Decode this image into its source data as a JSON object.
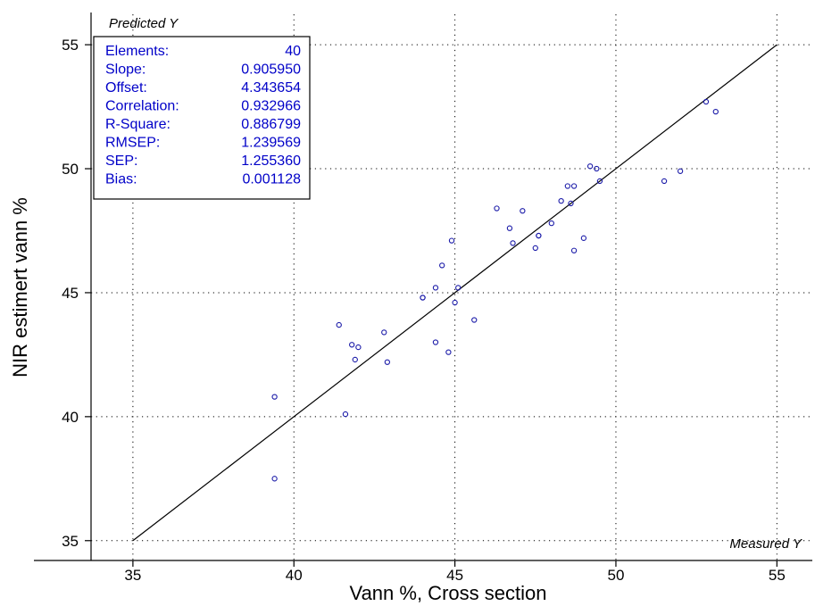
{
  "chart_data": {
    "type": "scatter",
    "xlabel": "Vann %, Cross section",
    "ylabel": "NIR estimert vann %",
    "corner_y_label": "Predicted Y",
    "corner_x_label": "Measured Y",
    "xlim": [
      33.7,
      56.1
    ],
    "ylim": [
      34.2,
      56.3
    ],
    "x_ticks": [
      35,
      40,
      45,
      50,
      55
    ],
    "y_ticks": [
      35,
      40,
      45,
      50,
      55
    ],
    "grid": true,
    "point_color": "#1a1aa8",
    "line_color": "#000000",
    "stats_color": "#0000c8",
    "fit_line": {
      "x1": 35,
      "y1": 35,
      "x2": 55,
      "y2": 55
    },
    "stats": [
      {
        "label": "Elements:",
        "value": "40"
      },
      {
        "label": "Slope:",
        "value": "0.905950"
      },
      {
        "label": "Offset:",
        "value": "4.343654"
      },
      {
        "label": "Correlation:",
        "value": "0.932966"
      },
      {
        "label": "R-Square:",
        "value": "0.886799"
      },
      {
        "label": "RMSEP:",
        "value": "1.239569"
      },
      {
        "label": "SEP:",
        "value": "1.255360"
      },
      {
        "label": "Bias:",
        "value": "0.001128"
      }
    ],
    "points": [
      {
        "x": 39.4,
        "y": 40.8
      },
      {
        "x": 39.4,
        "y": 37.5
      },
      {
        "x": 41.4,
        "y": 43.7
      },
      {
        "x": 41.6,
        "y": 40.1
      },
      {
        "x": 41.8,
        "y": 42.9
      },
      {
        "x": 41.9,
        "y": 42.3
      },
      {
        "x": 42.0,
        "y": 42.8
      },
      {
        "x": 42.8,
        "y": 43.4
      },
      {
        "x": 42.9,
        "y": 42.2
      },
      {
        "x": 44.0,
        "y": 44.8
      },
      {
        "x": 44.0,
        "y": 44.8
      },
      {
        "x": 44.4,
        "y": 45.2
      },
      {
        "x": 44.4,
        "y": 43.0
      },
      {
        "x": 44.6,
        "y": 46.1
      },
      {
        "x": 44.8,
        "y": 42.6
      },
      {
        "x": 44.9,
        "y": 47.1
      },
      {
        "x": 45.0,
        "y": 44.6
      },
      {
        "x": 45.1,
        "y": 45.2
      },
      {
        "x": 45.6,
        "y": 43.9
      },
      {
        "x": 46.3,
        "y": 48.4
      },
      {
        "x": 46.7,
        "y": 47.6
      },
      {
        "x": 46.8,
        "y": 47.0
      },
      {
        "x": 47.1,
        "y": 48.3
      },
      {
        "x": 47.5,
        "y": 46.8
      },
      {
        "x": 47.6,
        "y": 47.3
      },
      {
        "x": 47.6,
        "y": 47.3
      },
      {
        "x": 48.0,
        "y": 47.8
      },
      {
        "x": 48.3,
        "y": 48.7
      },
      {
        "x": 48.5,
        "y": 49.3
      },
      {
        "x": 48.6,
        "y": 48.6
      },
      {
        "x": 48.7,
        "y": 49.3
      },
      {
        "x": 48.7,
        "y": 46.7
      },
      {
        "x": 49.0,
        "y": 47.2
      },
      {
        "x": 49.2,
        "y": 50.1
      },
      {
        "x": 49.4,
        "y": 50.0
      },
      {
        "x": 49.5,
        "y": 49.5
      },
      {
        "x": 51.5,
        "y": 49.5
      },
      {
        "x": 52.0,
        "y": 49.9
      },
      {
        "x": 52.8,
        "y": 52.7
      },
      {
        "x": 53.1,
        "y": 52.3
      }
    ]
  }
}
